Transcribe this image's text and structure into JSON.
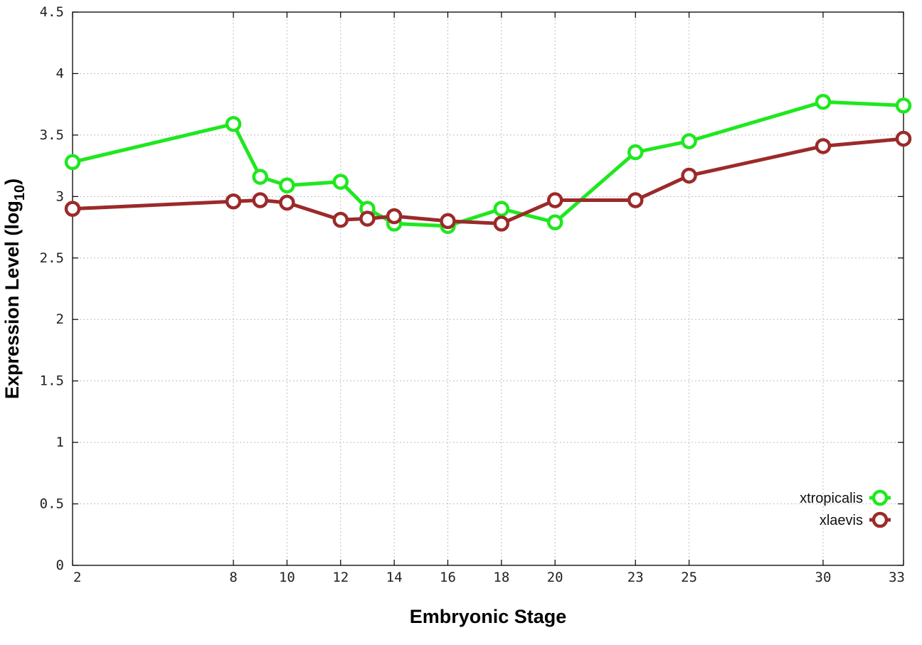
{
  "chart_data": {
    "type": "line",
    "xlabel": "Embryonic Stage",
    "ylabel_main": "Expression Level (log",
    "ylabel_sub": "10",
    "ylabel_close": ")",
    "xlim": [
      2,
      33
    ],
    "ylim": [
      0,
      4.5
    ],
    "x_ticks": [
      2,
      8,
      10,
      12,
      14,
      16,
      18,
      20,
      23,
      25,
      30,
      33
    ],
    "y_ticks": [
      {
        "value": 0,
        "label": "0"
      },
      {
        "value": 0.5,
        "label": "0.5"
      },
      {
        "value": 1,
        "label": "1"
      },
      {
        "value": 1.5,
        "label": "1.5"
      },
      {
        "value": 2,
        "label": "2"
      },
      {
        "value": 2.5,
        "label": "2.5"
      },
      {
        "value": 3,
        "label": "3"
      },
      {
        "value": 3.5,
        "label": "3.5"
      },
      {
        "value": 4,
        "label": "4"
      },
      {
        "value": 4.5,
        "label": "4.5"
      }
    ],
    "grid": true,
    "legend_position": "bottom-right",
    "series": [
      {
        "name": "xtropicalis",
        "color": "#1ee81e",
        "x": [
          2,
          8,
          9,
          10,
          12,
          13,
          14,
          16,
          18,
          20,
          23,
          25,
          30,
          33
        ],
        "y": [
          3.28,
          3.59,
          3.16,
          3.09,
          3.12,
          2.9,
          2.78,
          2.76,
          2.9,
          2.79,
          3.36,
          3.45,
          3.77,
          3.74
        ]
      },
      {
        "name": "xlaevis",
        "color": "#9b2a2a",
        "x": [
          2,
          8,
          9,
          10,
          12,
          13,
          14,
          16,
          18,
          20,
          23,
          25,
          30,
          33
        ],
        "y": [
          2.9,
          2.96,
          2.97,
          2.95,
          2.81,
          2.82,
          2.84,
          2.8,
          2.78,
          2.97,
          2.97,
          3.17,
          3.41,
          3.47
        ]
      }
    ]
  }
}
